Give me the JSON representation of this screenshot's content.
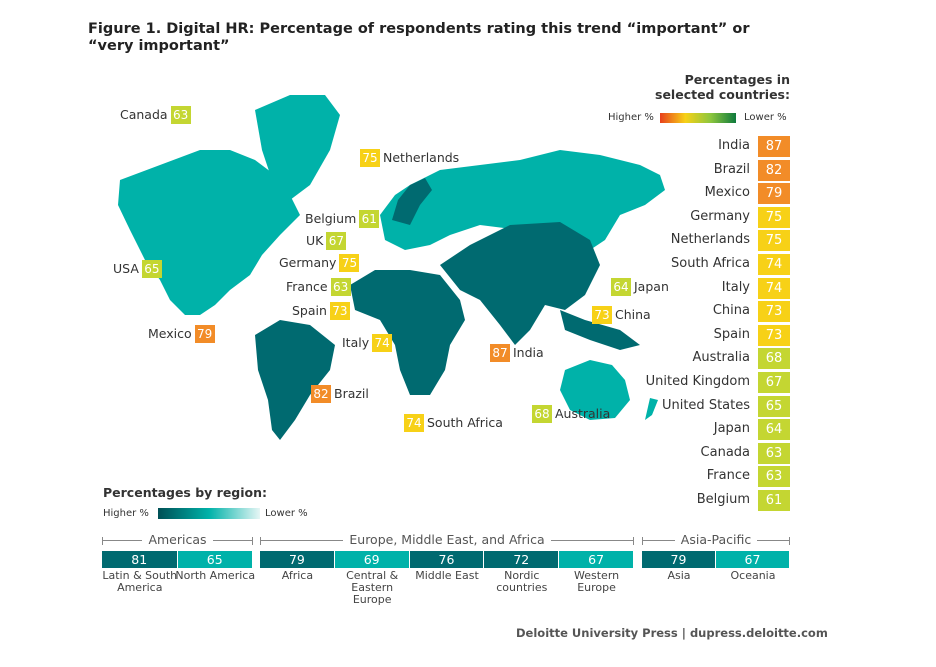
{
  "title": "Figure 1. Digital HR: Percentage of respondents rating this trend “important” or “very important”",
  "colors": {
    "orange": "#f28c28",
    "yellow": "#f7d117",
    "lime": "#c4d632",
    "dark_teal": "#006a70",
    "light_teal": "#00b2a9"
  },
  "legend_countries": {
    "title_line1": "Percentages in",
    "title_line2": "selected countries:",
    "higher": "Higher %",
    "lower": "Lower %"
  },
  "legend_regions": {
    "title": "Percentages by region:",
    "higher": "Higher %",
    "lower": "Lower %"
  },
  "chart_data": [
    {
      "type": "table",
      "title": "Percentages in selected countries",
      "categories": [
        "India",
        "Brazil",
        "Mexico",
        "Germany",
        "Netherlands",
        "South Africa",
        "Italy",
        "China",
        "Spain",
        "Australia",
        "United Kingdom",
        "United States",
        "Japan",
        "Canada",
        "France",
        "Belgium"
      ],
      "values": [
        87,
        82,
        79,
        75,
        75,
        74,
        74,
        73,
        73,
        68,
        67,
        65,
        64,
        63,
        63,
        61
      ]
    },
    {
      "type": "bar",
      "title": "Percentages by region",
      "groups": [
        {
          "name": "Americas",
          "regions": [
            {
              "name": "Latin & South America",
              "value": 81,
              "shade": "dark"
            },
            {
              "name": "North America",
              "value": 65,
              "shade": "light"
            }
          ]
        },
        {
          "name": "Europe, Middle East, and Africa",
          "regions": [
            {
              "name": "Africa",
              "value": 79,
              "shade": "dark"
            },
            {
              "name": "Central & Eastern Europe",
              "value": 69,
              "shade": "light"
            },
            {
              "name": "Middle East",
              "value": 76,
              "shade": "dark"
            },
            {
              "name": "Nordic countries",
              "value": 72,
              "shade": "dark"
            },
            {
              "name": "Western Europe",
              "value": 67,
              "shade": "light"
            }
          ]
        },
        {
          "name": "Asia-Pacific",
          "regions": [
            {
              "name": "Asia",
              "value": 79,
              "shade": "dark"
            },
            {
              "name": "Oceania",
              "value": 67,
              "shade": "light"
            }
          ]
        }
      ]
    }
  ],
  "map_labels": [
    {
      "name": "Canada",
      "value": 63
    },
    {
      "name": "Netherlands",
      "value": 75
    },
    {
      "name": "Belgium",
      "value": 61
    },
    {
      "name": "UK",
      "value": 67
    },
    {
      "name": "USA",
      "value": 65
    },
    {
      "name": "Germany",
      "value": 75
    },
    {
      "name": "France",
      "value": 63
    },
    {
      "name": "Spain",
      "value": 73
    },
    {
      "name": "Mexico",
      "value": 79
    },
    {
      "name": "Italy",
      "value": 74
    },
    {
      "name": "India",
      "value": 87
    },
    {
      "name": "Brazil",
      "value": 82
    },
    {
      "name": "South Africa",
      "value": 74
    },
    {
      "name": "Australia",
      "value": 68
    },
    {
      "name": "Japan",
      "value": 64
    },
    {
      "name": "China",
      "value": 73
    }
  ],
  "footer": "Deloitte University Press  |  dupress.deloitte.com"
}
